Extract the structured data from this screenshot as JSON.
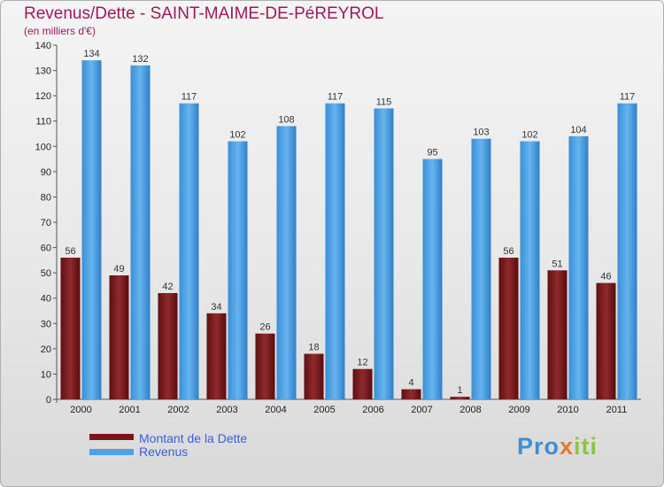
{
  "chart_data": {
    "type": "bar",
    "title": "Revenus/Dette - SAINT-MAIME-DE-PéREYROL",
    "subtitle": "(en milliers d'€)",
    "categories": [
      "2000",
      "2001",
      "2002",
      "2003",
      "2004",
      "2005",
      "2006",
      "2007",
      "2008",
      "2009",
      "2010",
      "2011"
    ],
    "series": [
      {
        "name": "Montant de la Dette",
        "values": [
          56,
          49,
          42,
          34,
          26,
          18,
          12,
          4,
          1,
          56,
          51,
          46
        ],
        "color": "#7a1518"
      },
      {
        "name": "Revenus",
        "values": [
          134,
          132,
          117,
          102,
          108,
          117,
          115,
          95,
          103,
          102,
          104,
          117
        ],
        "color": "#4ea3e6"
      }
    ],
    "ylim": [
      0,
      140
    ],
    "yticks": [
      0,
      10,
      20,
      30,
      40,
      50,
      60,
      70,
      80,
      90,
      100,
      110,
      120,
      130,
      140
    ],
    "legend_position": "bottom-left",
    "grid": false
  }
}
